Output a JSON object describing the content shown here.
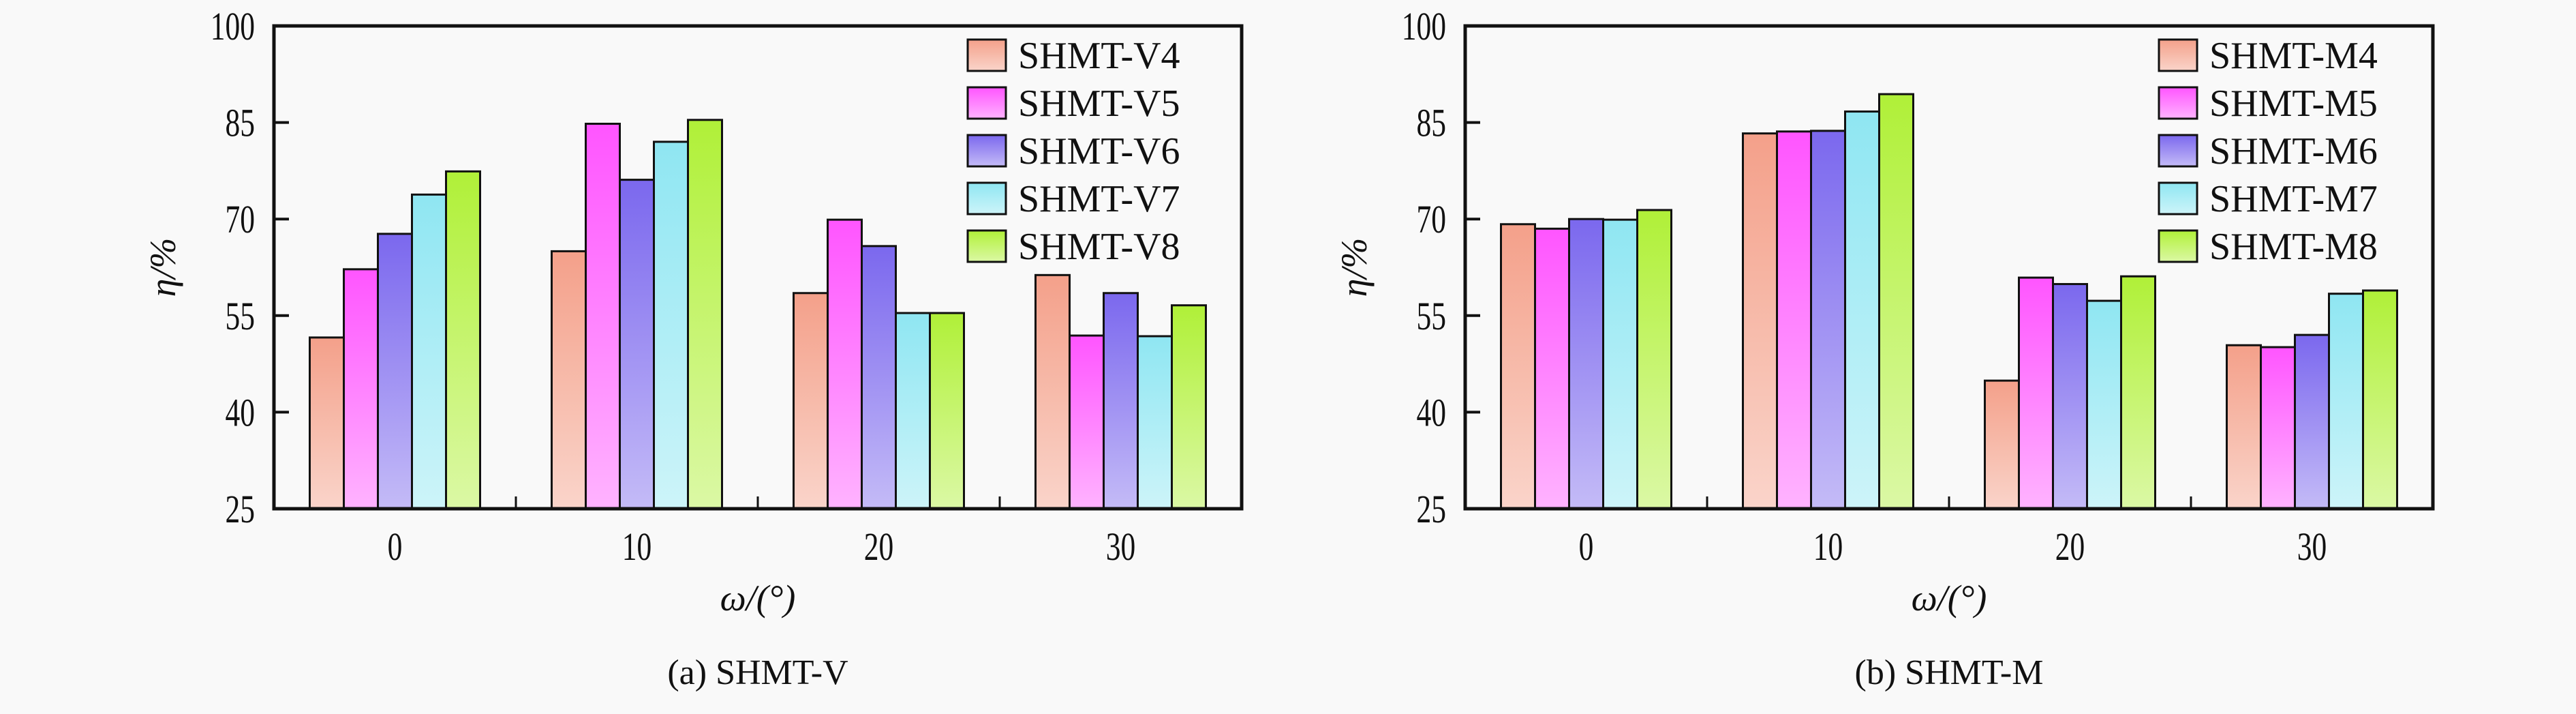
{
  "chart_data": [
    {
      "type": "bar",
      "caption": "(a) SHMT-V",
      "xlabel": "ω/(°)",
      "ylabel": "η/%",
      "categories": [
        "0",
        "10",
        "20",
        "30"
      ],
      "ylim": [
        25,
        100
      ],
      "yticks": [
        "25",
        "40",
        "55",
        "70",
        "85",
        "100"
      ],
      "legend_position": "top-right",
      "series": [
        {
          "name": "SHMT-V4",
          "color": "#f4a08a",
          "values": [
            51.6,
            65.0,
            58.5,
            61.3
          ]
        },
        {
          "name": "SHMT-V5",
          "color": "#ff55ff",
          "values": [
            62.2,
            84.8,
            69.9,
            51.9
          ]
        },
        {
          "name": "SHMT-V6",
          "color": "#7b68ee",
          "values": [
            67.7,
            76.1,
            65.8,
            58.5
          ]
        },
        {
          "name": "SHMT-V7",
          "color": "#8fe6f2",
          "values": [
            73.8,
            82.0,
            55.4,
            51.8
          ]
        },
        {
          "name": "SHMT-V8",
          "color": "#b0f038",
          "values": [
            77.4,
            85.4,
            55.4,
            56.6
          ]
        }
      ]
    },
    {
      "type": "bar",
      "caption": "(b) SHMT-M",
      "xlabel": "ω/(°)",
      "ylabel": "η/%",
      "categories": [
        "0",
        "10",
        "20",
        "30"
      ],
      "ylim": [
        25,
        100
      ],
      "yticks": [
        "25",
        "40",
        "55",
        "70",
        "85",
        "100"
      ],
      "legend_position": "top-right",
      "series": [
        {
          "name": "SHMT-M4",
          "color": "#f4a08a",
          "values": [
            69.2,
            83.3,
            44.9,
            50.4
          ]
        },
        {
          "name": "SHMT-M5",
          "color": "#ff55ff",
          "values": [
            68.5,
            83.6,
            60.9,
            50.1
          ]
        },
        {
          "name": "SHMT-M6",
          "color": "#7b68ee",
          "values": [
            70.0,
            83.7,
            59.9,
            52.0
          ]
        },
        {
          "name": "SHMT-M7",
          "color": "#8fe6f2",
          "values": [
            69.9,
            86.7,
            57.3,
            58.4
          ]
        },
        {
          "name": "SHMT-M8",
          "color": "#b0f038",
          "values": [
            71.4,
            89.4,
            61.1,
            58.9
          ]
        }
      ]
    }
  ]
}
